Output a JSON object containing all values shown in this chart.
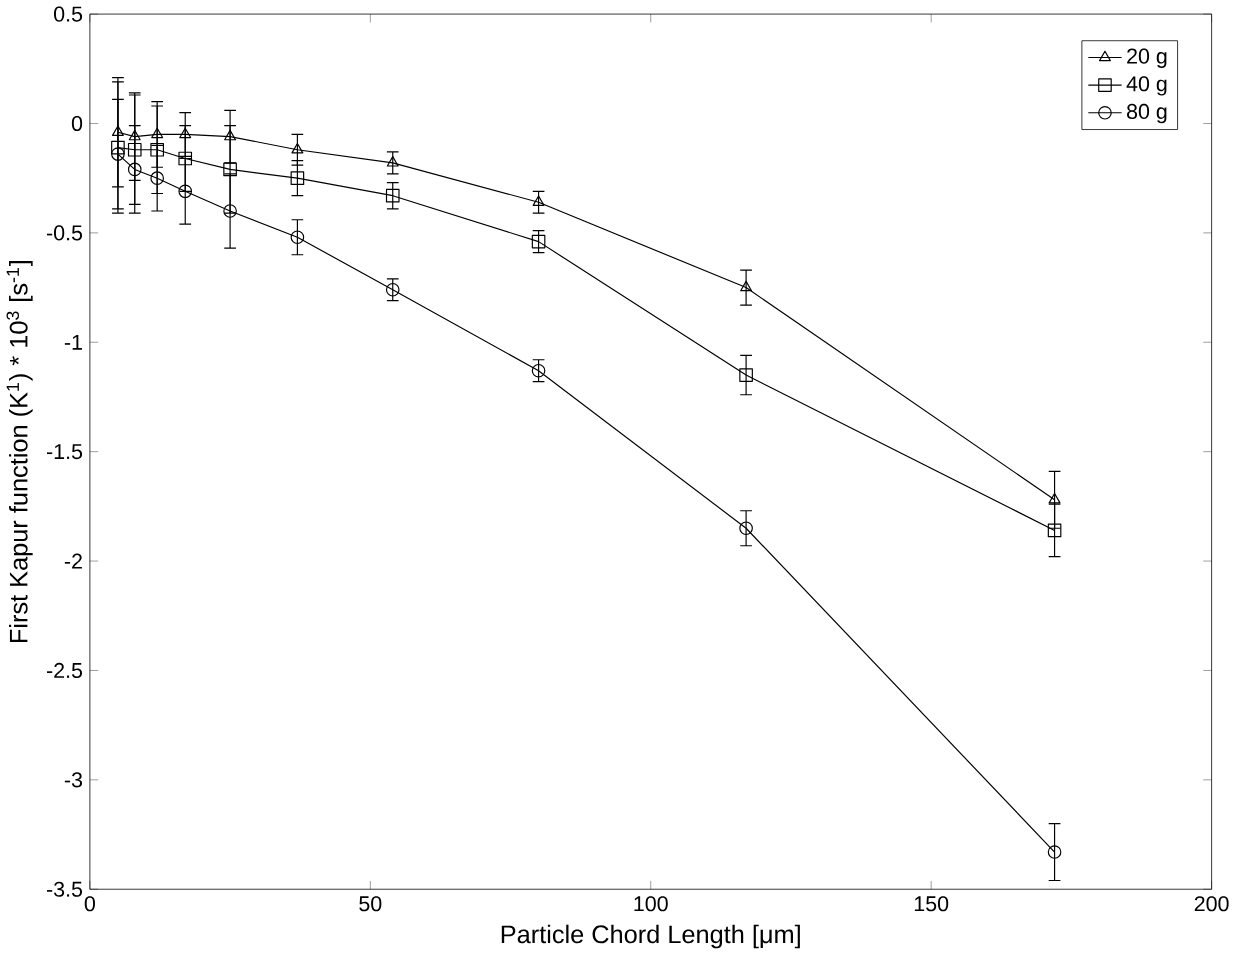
{
  "chart_data": {
    "type": "line",
    "xlabel": "Particle Chord Length [μm]",
    "ylabel": "First Kapur function (K$^{1}$) * 10$^{3}$ [s$^{-1}$]",
    "x": [
      5,
      8,
      12,
      17,
      25,
      37,
      54,
      80,
      117,
      172
    ],
    "series": [
      {
        "name": "20 g",
        "color": "#000000",
        "marker": "triangle",
        "values": [
          -0.04,
          -0.06,
          -0.05,
          -0.05,
          -0.06,
          -0.12,
          -0.18,
          -0.36,
          -0.75,
          -1.72
        ],
        "errors": [
          0.25,
          0.2,
          0.15,
          0.1,
          0.12,
          0.07,
          0.05,
          0.05,
          0.08,
          0.13
        ]
      },
      {
        "name": "40 g",
        "color": "#000000",
        "marker": "square",
        "values": [
          -0.11,
          -0.12,
          -0.12,
          -0.16,
          -0.21,
          -0.25,
          -0.33,
          -0.54,
          -1.15,
          -1.86
        ],
        "errors": [
          0.3,
          0.25,
          0.2,
          0.15,
          0.2,
          0.08,
          0.06,
          0.05,
          0.09,
          0.12
        ]
      },
      {
        "name": "80 g",
        "color": "#000000",
        "marker": "circle",
        "values": [
          -0.14,
          -0.21,
          -0.25,
          -0.31,
          -0.4,
          -0.52,
          -0.76,
          -1.13,
          -1.85,
          -3.33
        ],
        "errors": [
          0.25,
          0.2,
          0.15,
          0.15,
          0.17,
          0.08,
          0.05,
          0.05,
          0.08,
          0.13
        ]
      }
    ],
    "xlim": [
      0,
      200
    ],
    "xticks": [
      0,
      50,
      100,
      150,
      200
    ],
    "ylim": [
      -3.5,
      0.5
    ],
    "yticks": [
      -3.5,
      -3,
      -2.5,
      -2,
      -1.5,
      -1,
      -0.5,
      0,
      0.5
    ],
    "grid": false,
    "legend": "top right",
    "line_style": "solid"
  }
}
